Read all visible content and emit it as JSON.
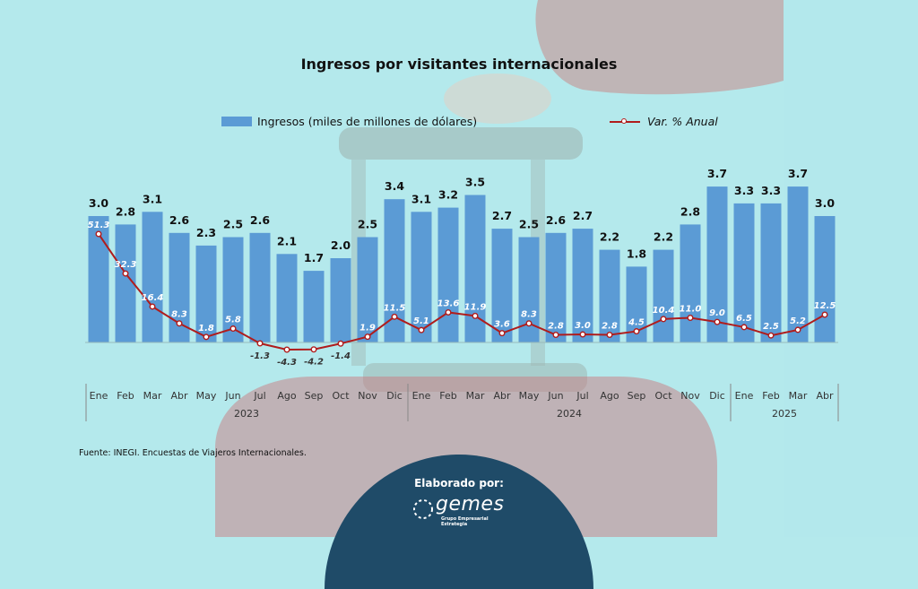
{
  "title": "Ingresos por visitantes internacionales",
  "legend": {
    "bars": "Ingresos (miles de millones de dólares)",
    "line": "Var. % Anual"
  },
  "source": "Fuente: INEGI. Encuestas de Viajeros Internacionales.",
  "footer": {
    "elaborado": "Elaborado por:",
    "logo_name": "gemes",
    "logo_tagline": "Grupo Empresarial Estrategia"
  },
  "colors": {
    "background": "#b4e9ec",
    "bars": "#5b9bd5",
    "line": "#b01c1c",
    "footer": "#1f4b68"
  },
  "chart_data": {
    "type": "bar",
    "title": "Ingresos por visitantes internacionales",
    "categories": [
      "Ene",
      "Feb",
      "Mar",
      "Abr",
      "May",
      "Jun",
      "Jul",
      "Ago",
      "Sep",
      "Oct",
      "Nov",
      "Dic",
      "Ene",
      "Feb",
      "Mar",
      "Abr",
      "May",
      "Jun",
      "Jul",
      "Ago",
      "Sep",
      "Oct",
      "Nov",
      "Dic",
      "Ene",
      "Feb",
      "Mar",
      "Abr"
    ],
    "year_groups": [
      {
        "label": "2023",
        "count": 12
      },
      {
        "label": "2024",
        "count": 12
      },
      {
        "label": "2025",
        "count": 4
      }
    ],
    "series": [
      {
        "name": "Ingresos (miles de millones de dólares)",
        "type": "bar",
        "values": [
          3.0,
          2.8,
          3.1,
          2.6,
          2.3,
          2.5,
          2.6,
          2.1,
          1.7,
          2.0,
          2.5,
          3.4,
          3.1,
          3.2,
          3.5,
          2.7,
          2.5,
          2.6,
          2.7,
          2.2,
          1.8,
          2.2,
          2.8,
          3.7,
          3.3,
          3.3,
          3.7,
          3.0
        ],
        "labels": [
          "3.0",
          "2.8",
          "3.1",
          "2.6",
          "2.3",
          "2.5",
          "2.6",
          "2.1",
          "1.7",
          "2.0",
          "2.5",
          "3.4",
          "3.1",
          "3.2",
          "3.5",
          "2.7",
          "2.5",
          "2.6",
          "2.7",
          "2.2",
          "1.8",
          "2.2",
          "2.8",
          "3.7",
          "3.3",
          "3.3",
          "3.7",
          "3.0"
        ]
      },
      {
        "name": "Var. % Anual",
        "type": "line",
        "values": [
          51.3,
          32.3,
          16.4,
          8.3,
          1.8,
          5.8,
          -1.3,
          -4.3,
          -4.2,
          -1.4,
          1.9,
          11.5,
          5.1,
          13.6,
          11.9,
          3.6,
          8.3,
          2.8,
          3.0,
          2.8,
          4.5,
          10.4,
          11.0,
          9.0,
          6.5,
          2.5,
          5.2,
          12.5
        ],
        "labels": [
          "51.3",
          "32.3",
          "16.4",
          "8.3",
          "1.8",
          "5.8",
          "-1.3",
          "-4.3",
          "-4.2",
          "-1.4",
          "1.9",
          "11.5",
          "5.1",
          "13.6",
          "11.9",
          "3.6",
          "8.3",
          "2.8",
          "3.0",
          "2.8",
          "4.5",
          "10.4",
          "11.0",
          "9.0",
          "6.5",
          "2.5",
          "5.2",
          "12.5"
        ]
      }
    ],
    "grid": false,
    "legend_position": "top"
  }
}
